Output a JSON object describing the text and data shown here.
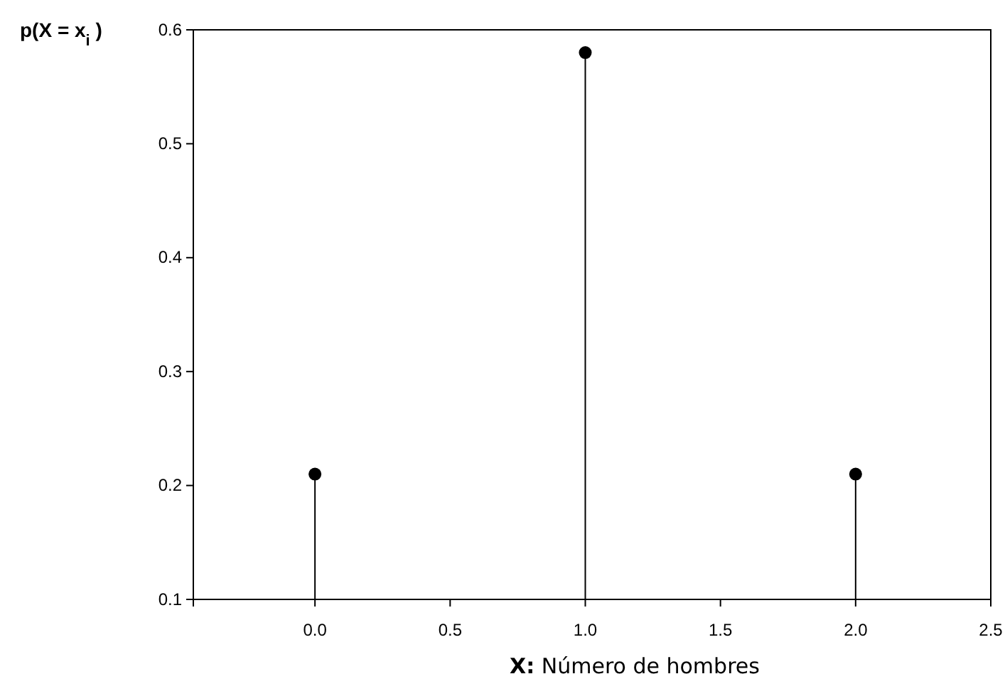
{
  "chart_data": {
    "type": "lollipop",
    "xlabel": "X:  Número de hombres",
    "ylabel": "p(X = x$_{i}$ )",
    "x": [
      0,
      1,
      2
    ],
    "values": [
      0.21,
      0.58,
      0.21
    ],
    "color": "#000000",
    "marker": "circle",
    "xlim": [
      -0.45,
      2.5
    ],
    "xticks": [
      {
        "value": 0,
        "label": "0.0"
      },
      {
        "value": 0.5,
        "label": "0.5"
      },
      {
        "value": 1,
        "label": "1.0"
      },
      {
        "value": 1.5,
        "label": "1.5"
      },
      {
        "value": 2,
        "label": "2.0"
      },
      {
        "value": 2.5,
        "label": "2.5"
      }
    ],
    "ylim": [
      0.1,
      0.6
    ],
    "yticks": [
      0.1,
      0.2,
      0.3,
      0.4,
      0.5,
      0.6
    ]
  }
}
